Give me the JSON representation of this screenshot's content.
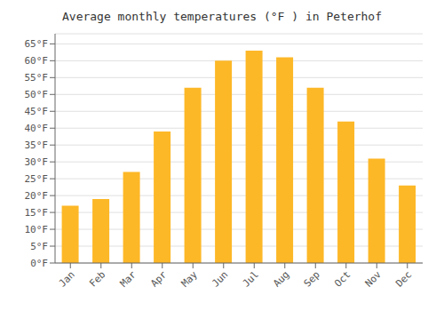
{
  "chart_data": {
    "type": "bar",
    "title": "Average monthly temperatures (°F ) in Peterhof",
    "categories": [
      "Jan",
      "Feb",
      "Mar",
      "Apr",
      "May",
      "Jun",
      "Jul",
      "Aug",
      "Sep",
      "Oct",
      "Nov",
      "Dec"
    ],
    "values": [
      17,
      19,
      27,
      39,
      52,
      60,
      63,
      61,
      52,
      42,
      31,
      23
    ],
    "color": "#FDB827",
    "ylim": [
      0,
      68
    ],
    "yticks": [
      {
        "value": 0,
        "label": "0°F"
      },
      {
        "value": 5,
        "label": "5°F"
      },
      {
        "value": 10,
        "label": "10°F"
      },
      {
        "value": 15,
        "label": "15°F"
      },
      {
        "value": 20,
        "label": "20°F"
      },
      {
        "value": 25,
        "label": "25°F"
      },
      {
        "value": 30,
        "label": "30°F"
      },
      {
        "value": 35,
        "label": "35°F"
      },
      {
        "value": 40,
        "label": "40°F"
      },
      {
        "value": 45,
        "label": "45°F"
      },
      {
        "value": 50,
        "label": "50°F"
      },
      {
        "value": 55,
        "label": "55°F"
      },
      {
        "value": 60,
        "label": "60°F"
      },
      {
        "value": 65,
        "label": "65°F"
      }
    ],
    "grid": true
  }
}
